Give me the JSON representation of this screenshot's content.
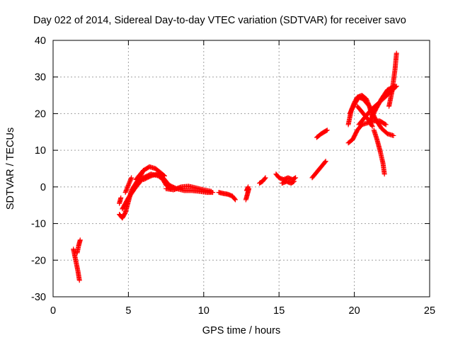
{
  "chart_data": {
    "type": "scatter",
    "title": "Day 022 of 2014, Sidereal Day-to-day VTEC variation (SDTVAR) for receiver savo",
    "xlabel": "GPS time / hours",
    "ylabel": "SDTVAR / TECUs",
    "xlim": [
      0,
      25
    ],
    "ylim": [
      -30,
      40
    ],
    "x_ticks": [
      0,
      5,
      10,
      15,
      20,
      25
    ],
    "y_ticks": [
      -30,
      -20,
      -10,
      0,
      10,
      20,
      30,
      40
    ],
    "x_tick_labels": [
      "0",
      "5",
      "10",
      "15",
      "20",
      "25"
    ],
    "y_tick_labels": [
      "-30",
      "-20",
      "-10",
      "0",
      "10",
      "20",
      "30",
      "40"
    ],
    "grid": true,
    "marker": "+",
    "marker_color": "#ff0000",
    "segments": [
      {
        "name": "s1",
        "x": [
          1.35,
          1.45,
          1.55,
          1.65,
          1.75
        ],
        "y": [
          -17,
          -19,
          -21,
          -23,
          -25.5
        ]
      },
      {
        "name": "s2",
        "x": [
          1.6,
          1.7,
          1.8
        ],
        "y": [
          -18,
          -16,
          -14.5
        ]
      },
      {
        "name": "s3",
        "x": [
          4.4,
          4.6,
          4.8,
          5.0,
          5.2,
          5.5,
          5.8,
          6.0
        ],
        "y": [
          -7.5,
          -8.5,
          -7,
          -4,
          -1,
          1,
          3,
          4.5
        ]
      },
      {
        "name": "s4",
        "x": [
          4.4,
          4.5
        ],
        "y": [
          -4.5,
          -3
        ]
      },
      {
        "name": "s5",
        "x": [
          4.8,
          5.0,
          5.2
        ],
        "y": [
          -1.5,
          0.5,
          2.5
        ]
      },
      {
        "name": "s6",
        "x": [
          4.6,
          5.0,
          5.5,
          6.0,
          6.5,
          7.0,
          7.3,
          7.5,
          7.8
        ],
        "y": [
          -6,
          -3,
          0,
          2.5,
          3.5,
          3,
          2,
          0.5,
          -0.5
        ]
      },
      {
        "name": "s7",
        "x": [
          5.5,
          6.0,
          6.4,
          6.8,
          7.1,
          7.4
        ],
        "y": [
          2,
          4.5,
          5.5,
          5,
          4,
          3
        ]
      },
      {
        "name": "s8",
        "x": [
          6.0,
          6.5,
          6.9,
          7.3,
          7.7,
          8.2,
          8.7,
          9.2,
          9.7,
          10.2,
          10.6
        ],
        "y": [
          2,
          3,
          3.5,
          2.5,
          0.5,
          -0.5,
          -1,
          -1,
          -1.2,
          -1.5,
          -1.5
        ]
      },
      {
        "name": "s9",
        "x": [
          7.5,
          8.0,
          8.5,
          9.0,
          9.5,
          10.0,
          10.5
        ],
        "y": [
          -0.5,
          -0.8,
          0,
          0.2,
          -0.3,
          -0.8,
          -1.2
        ]
      },
      {
        "name": "s10",
        "x": [
          11.0,
          11.3,
          11.6,
          11.9,
          12.1
        ],
        "y": [
          -1.5,
          -1.8,
          -2,
          -2.5,
          -3.5
        ]
      },
      {
        "name": "s11",
        "x": [
          12.8,
          12.9,
          13.0,
          12.85,
          12.95
        ],
        "y": [
          -3.5,
          -2,
          -0.5,
          -1,
          0
        ]
      },
      {
        "name": "s12",
        "x": [
          13.7,
          13.9,
          14.1
        ],
        "y": [
          1,
          1.5,
          2.5
        ]
      },
      {
        "name": "s13",
        "x": [
          14.8,
          15.0,
          15.3,
          15.6,
          15.9,
          16.1
        ],
        "y": [
          3.5,
          2.5,
          2,
          2.5,
          2,
          2.5
        ]
      },
      {
        "name": "s14",
        "x": [
          15.2,
          15.5,
          15.8,
          16.0
        ],
        "y": [
          1,
          1.5,
          1,
          1.5
        ]
      },
      {
        "name": "s15",
        "x": [
          17.2,
          17.5,
          17.8,
          18.1
        ],
        "y": [
          2.5,
          4,
          5.5,
          7
        ]
      },
      {
        "name": "s16",
        "x": [
          17.5,
          17.8,
          18.0,
          18.2
        ],
        "y": [
          13.5,
          14.5,
          15,
          15.5
        ]
      },
      {
        "name": "s17",
        "x": [
          19.6,
          19.8,
          20.0,
          20.2,
          20.5,
          20.8,
          21.0,
          21.2
        ],
        "y": [
          17,
          21,
          23,
          24.5,
          25,
          24,
          22,
          19
        ]
      },
      {
        "name": "s18",
        "x": [
          19.7,
          20.0,
          20.3,
          20.6,
          21.0,
          21.4,
          21.8,
          22.2,
          22.6
        ],
        "y": [
          20,
          22.5,
          24.5,
          24,
          22,
          18.5,
          16,
          14.5,
          14
        ]
      },
      {
        "name": "s19",
        "x": [
          19.6,
          19.9,
          20.2,
          20.5,
          20.9,
          21.3,
          21.7,
          22.1
        ],
        "y": [
          12,
          13,
          15.5,
          17,
          17.5,
          18,
          18,
          17
        ]
      },
      {
        "name": "s20",
        "x": [
          20.3,
          20.7,
          21.1,
          21.5,
          21.9,
          22.3,
          22.8
        ],
        "y": [
          17,
          19,
          21,
          22.5,
          24,
          25.5,
          27.5
        ]
      },
      {
        "name": "s21",
        "x": [
          21.0,
          21.4,
          21.8,
          22.2,
          22.7
        ],
        "y": [
          17.5,
          21,
          24,
          26.5,
          27.5
        ]
      },
      {
        "name": "s22",
        "x": [
          20.2,
          20.5,
          20.8,
          21.0,
          21.2
        ],
        "y": [
          22,
          20.5,
          19,
          18,
          16.5
        ]
      },
      {
        "name": "s23",
        "x": [
          21.3,
          21.5,
          21.7,
          21.9,
          22.0
        ],
        "y": [
          15.5,
          13,
          10,
          6.5,
          3.5
        ]
      },
      {
        "name": "s24",
        "x": [
          22.3,
          22.5,
          22.6,
          22.7,
          22.8
        ],
        "y": [
          22,
          26,
          29,
          32,
          36.5
        ]
      }
    ]
  }
}
